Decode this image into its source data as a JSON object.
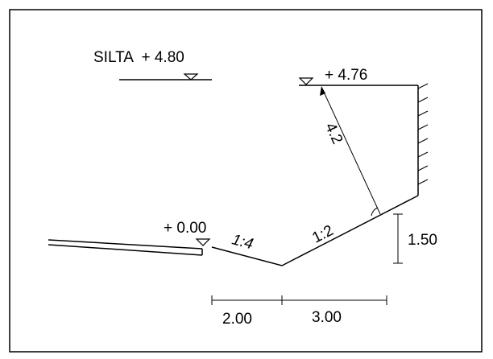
{
  "labels": {
    "bridge_level": "SILTA  + 4.80",
    "top_level": "+ 4.76",
    "water_level": "+ 0.00",
    "slope_left": "1:4",
    "slope_right": "1:2",
    "slope_length": "4.2",
    "height": "1.50",
    "dim_left": "2.00",
    "dim_right": "3.00"
  },
  "icons": [
    "level-triangle-icon",
    "hatched-wall-icon",
    "angle-arc-icon"
  ],
  "colors": {
    "line": "#000000",
    "background": "#ffffff"
  }
}
